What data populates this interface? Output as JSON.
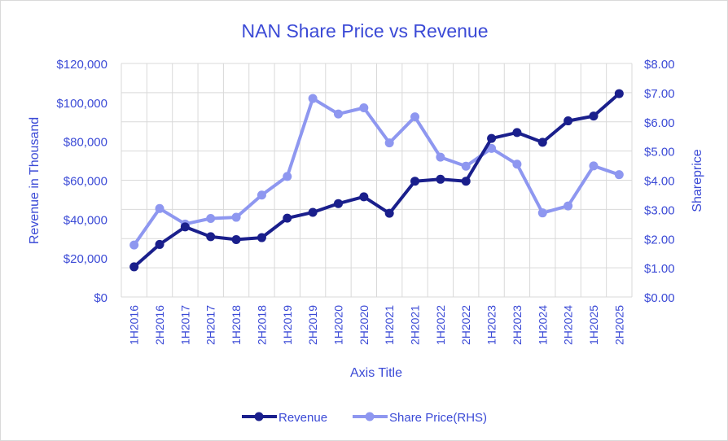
{
  "chart_data": {
    "type": "line",
    "title": "NAN Share Price vs Revenue",
    "xlabel": "Axis Title",
    "ylabel": "Revenue in Thousand",
    "y2label": "Shareprice",
    "categories": [
      "1H2016",
      "2H2016",
      "1H2017",
      "2H2017",
      "1H2018",
      "2H2018",
      "1H2019",
      "2H2019",
      "1H2020",
      "2H2020",
      "1H2021",
      "2H2021",
      "1H2022",
      "2H2022",
      "1H2023",
      "2H2023",
      "1H2024",
      "2H2024",
      "1H2025",
      "2H2025"
    ],
    "ylim": [
      0,
      120000
    ],
    "y2lim": [
      0,
      8
    ],
    "y_ticks": [
      "$0",
      "$20,000",
      "$40,000",
      "$60,000",
      "$80,000",
      "$100,000",
      "$120,000"
    ],
    "y2_ticks": [
      "$0.00",
      "$1.00",
      "$2.00",
      "$3.00",
      "$4.00",
      "$5.00",
      "$6.00",
      "$7.00",
      "$8.00"
    ],
    "grid": true,
    "legend_position": "bottom",
    "series": [
      {
        "name": "Revenue",
        "axis": "left",
        "color": "#1a1f8c",
        "values": [
          15500,
          27000,
          36000,
          31000,
          29500,
          30500,
          40500,
          43500,
          48000,
          51500,
          43000,
          59500,
          60500,
          59500,
          81500,
          84500,
          79500,
          90500,
          93000,
          104500
        ]
      },
      {
        "name": "Share Price(RHS)",
        "axis": "right",
        "color": "#8e97f0",
        "values": [
          1.78,
          3.03,
          2.5,
          2.69,
          2.73,
          3.49,
          4.13,
          6.8,
          6.27,
          6.48,
          5.28,
          6.17,
          4.79,
          4.48,
          5.09,
          4.55,
          2.88,
          3.12,
          4.49,
          4.19
        ]
      }
    ]
  }
}
